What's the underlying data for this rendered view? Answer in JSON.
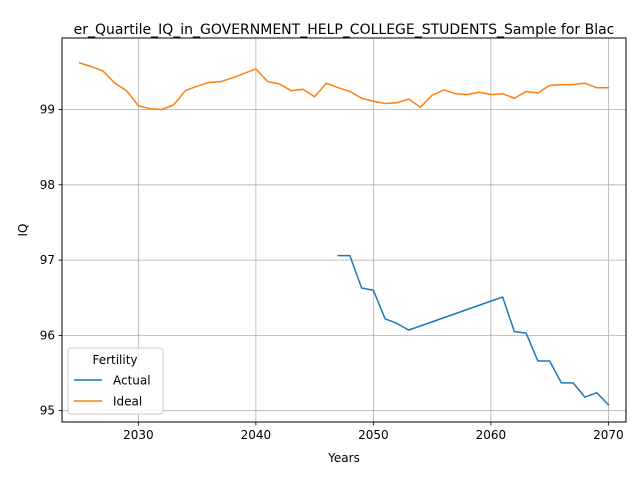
{
  "chart_data": {
    "type": "line",
    "title": "er_Quartile_IQ_in_GOVERNMENT_HELP_COLLEGE_STUDENTS_Sample for Blac",
    "xlabel": "Years",
    "ylabel": "IQ",
    "xlim": [
      2023.5,
      2071.5
    ],
    "ylim": [
      94.85,
      99.95
    ],
    "xticks": [
      2030,
      2040,
      2050,
      2060,
      2070
    ],
    "yticks": [
      95,
      96,
      97,
      98,
      99
    ],
    "grid": true,
    "legend": {
      "title": "Fertility",
      "position": "lower-left"
    },
    "series": [
      {
        "name": "Actual",
        "color": "#1f77b4",
        "x": [
          2047,
          2048,
          2049,
          2050,
          2051,
          2052,
          2053,
          2061,
          2062,
          2063,
          2064,
          2065,
          2066,
          2067,
          2068,
          2069,
          2070
        ],
        "y": [
          97.06,
          97.06,
          96.63,
          96.6,
          96.22,
          96.16,
          96.07,
          96.51,
          96.05,
          96.03,
          95.66,
          95.66,
          95.37,
          95.37,
          95.18,
          95.24,
          95.08
        ]
      },
      {
        "name": "Ideal",
        "color": "#ff7f0e",
        "x": [
          2025,
          2026,
          2027,
          2028,
          2029,
          2030,
          2031,
          2032,
          2033,
          2034,
          2035,
          2036,
          2037,
          2038,
          2039,
          2040,
          2041,
          2042,
          2043,
          2044,
          2045,
          2046,
          2047,
          2048,
          2049,
          2050,
          2051,
          2052,
          2053,
          2054,
          2055,
          2056,
          2057,
          2058,
          2059,
          2060,
          2061,
          2062,
          2063,
          2064,
          2065,
          2066,
          2067,
          2068,
          2069,
          2070
        ],
        "y": [
          99.62,
          99.57,
          99.51,
          99.35,
          99.25,
          99.05,
          99.01,
          99.0,
          99.06,
          99.25,
          99.31,
          99.36,
          99.37,
          99.42,
          99.48,
          99.54,
          99.37,
          99.34,
          99.25,
          99.27,
          99.17,
          99.35,
          99.29,
          99.24,
          99.15,
          99.11,
          99.08,
          99.09,
          99.14,
          99.03,
          99.19,
          99.26,
          99.21,
          99.2,
          99.23,
          99.2,
          99.21,
          99.15,
          99.24,
          99.22,
          99.32,
          99.33,
          99.33,
          99.35,
          99.29,
          99.29
        ]
      }
    ]
  }
}
